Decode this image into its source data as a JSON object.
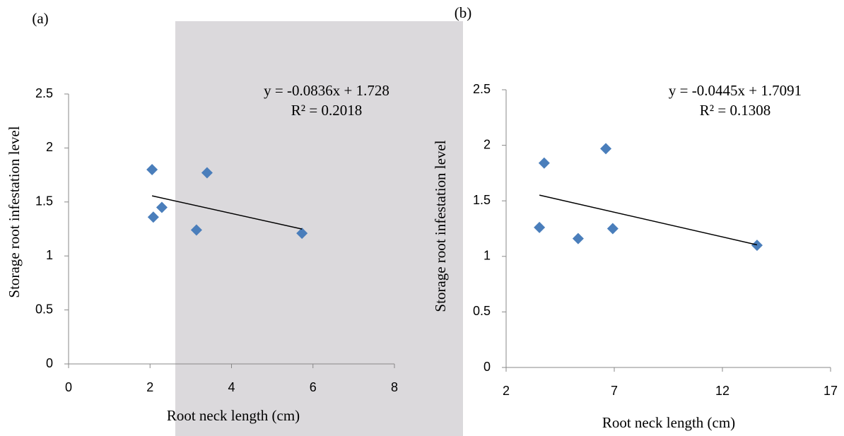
{
  "chart_data": [
    {
      "type": "scatter",
      "label": "(a)",
      "xlabel": "Root neck length (cm)",
      "ylabel": "Storage root infestation level",
      "series": [
        {
          "x": [
            2.05,
            2.08,
            2.29,
            3.4,
            3.14,
            5.73
          ],
          "values": [
            1.8,
            1.36,
            1.45,
            1.77,
            1.24,
            1.21
          ],
          "color": "#4a7ebb"
        }
      ],
      "xlim": [
        0,
        8
      ],
      "ylim": [
        0,
        2.5
      ],
      "xticks": [
        0,
        2,
        4,
        6,
        8
      ],
      "yticks": [
        0,
        0.5,
        1,
        1.5,
        2,
        2.5
      ],
      "trendline": {
        "slope": -0.0836,
        "intercept": 1.728,
        "equation": "y = -0.0836x + 1.728",
        "r2": "R² = 0.2018"
      }
    },
    {
      "type": "scatter",
      "label": "(b)",
      "xlabel": "Root neck length (cm)",
      "ylabel": "Storage root infestation level",
      "series": [
        {
          "x": [
            3.54,
            3.76,
            5.33,
            6.61,
            6.93,
            13.6
          ],
          "values": [
            1.26,
            1.84,
            1.16,
            1.97,
            1.25,
            1.1
          ],
          "color": "#4a7ebb"
        }
      ],
      "xlim": [
        2,
        17
      ],
      "ylim": [
        0,
        2.5
      ],
      "xticks": [
        2,
        7,
        12,
        17
      ],
      "yticks": [
        0,
        0.5,
        1,
        1.5,
        2,
        2.5
      ],
      "trendline": {
        "slope": -0.0445,
        "intercept": 1.7091,
        "equation": "y = -0.0445x + 1.7091",
        "r2": "R² = 0.1308"
      }
    }
  ]
}
